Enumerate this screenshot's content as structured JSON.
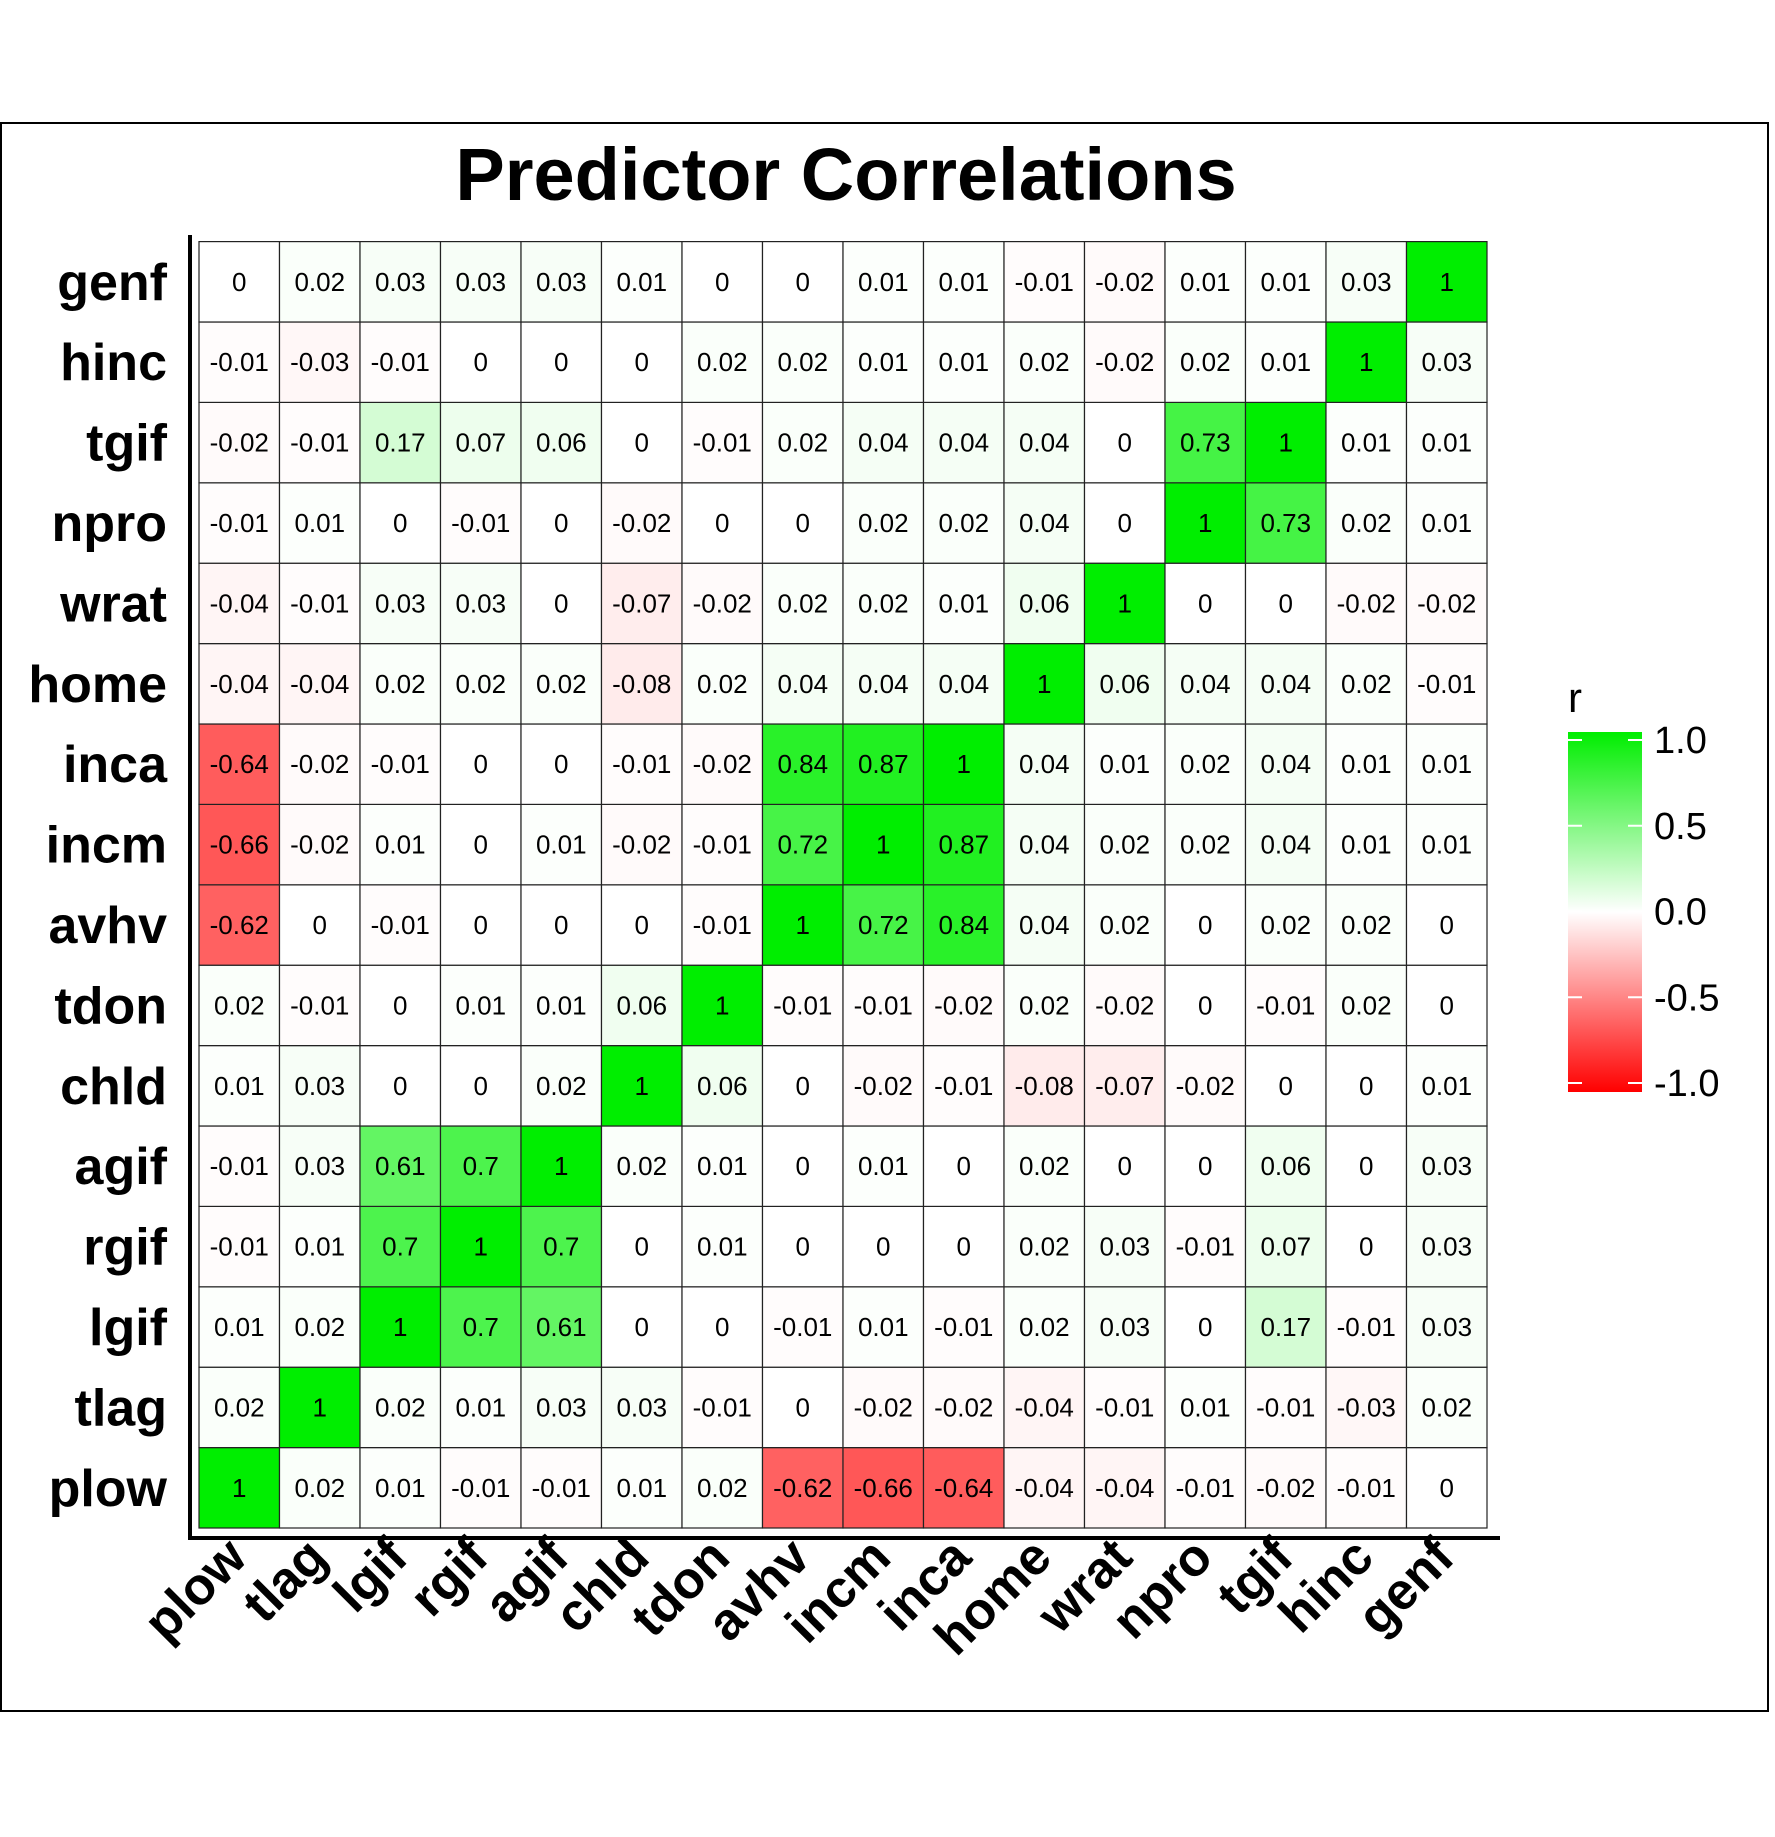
{
  "chart_data": {
    "type": "heatmap",
    "title": "Predictor Correlations",
    "variables": [
      "plow",
      "tlag",
      "lgif",
      "rgif",
      "agif",
      "chld",
      "tdon",
      "avhv",
      "incm",
      "inca",
      "home",
      "wrat",
      "npro",
      "tgif",
      "hinc",
      "genf"
    ],
    "matrix": [
      [
        1,
        0.02,
        0.01,
        -0.01,
        -0.01,
        0.01,
        0.02,
        -0.62,
        -0.66,
        -0.64,
        -0.04,
        -0.04,
        -0.01,
        -0.02,
        -0.01,
        0
      ],
      [
        0.02,
        1,
        0.02,
        0.01,
        0.03,
        0.03,
        -0.01,
        0,
        -0.02,
        -0.02,
        -0.04,
        -0.01,
        0.01,
        -0.01,
        -0.03,
        0.02
      ],
      [
        0.01,
        0.02,
        1,
        0.7,
        0.61,
        0,
        0,
        -0.01,
        0.01,
        -0.01,
        0.02,
        0.03,
        0,
        0.17,
        -0.01,
        0.03
      ],
      [
        -0.01,
        0.01,
        0.7,
        1,
        0.7,
        0,
        0.01,
        0,
        0,
        0,
        0.02,
        0.03,
        -0.01,
        0.07,
        0,
        0.03
      ],
      [
        -0.01,
        0.03,
        0.61,
        0.7,
        1,
        0.02,
        0.01,
        0,
        0.01,
        0,
        0.02,
        0,
        0,
        0.06,
        0,
        0.03
      ],
      [
        0.01,
        0.03,
        0,
        0,
        0.02,
        1,
        0.06,
        0,
        -0.02,
        -0.01,
        -0.08,
        -0.07,
        -0.02,
        0,
        0,
        0.01
      ],
      [
        0.02,
        -0.01,
        0,
        0.01,
        0.01,
        0.06,
        1,
        -0.01,
        -0.01,
        -0.02,
        0.02,
        -0.02,
        0,
        -0.01,
        0.02,
        0
      ],
      [
        -0.62,
        0,
        -0.01,
        0,
        0,
        0,
        -0.01,
        1,
        0.72,
        0.84,
        0.04,
        0.02,
        0,
        0.02,
        0.02,
        0
      ],
      [
        -0.66,
        -0.02,
        0.01,
        0,
        0.01,
        -0.02,
        -0.01,
        0.72,
        1,
        0.87,
        0.04,
        0.02,
        0.02,
        0.04,
        0.01,
        0.01
      ],
      [
        -0.64,
        -0.02,
        -0.01,
        0,
        0,
        -0.01,
        -0.02,
        0.84,
        0.87,
        1,
        0.04,
        0.01,
        0.02,
        0.04,
        0.01,
        0.01
      ],
      [
        -0.04,
        -0.04,
        0.02,
        0.02,
        0.02,
        -0.08,
        0.02,
        0.04,
        0.04,
        0.04,
        1,
        0.06,
        0.04,
        0.04,
        0.02,
        -0.01
      ],
      [
        -0.04,
        -0.01,
        0.03,
        0.03,
        0,
        -0.07,
        -0.02,
        0.02,
        0.02,
        0.01,
        0.06,
        1,
        0,
        0,
        -0.02,
        -0.02
      ],
      [
        -0.01,
        0.01,
        0,
        -0.01,
        0,
        -0.02,
        0,
        0,
        0.02,
        0.02,
        0.04,
        0,
        1,
        0.73,
        0.02,
        0.01
      ],
      [
        -0.02,
        -0.01,
        0.17,
        0.07,
        0.06,
        0,
        -0.01,
        0.02,
        0.04,
        0.04,
        0.04,
        0,
        0.73,
        1,
        0.01,
        0.01
      ],
      [
        -0.01,
        -0.03,
        -0.01,
        0,
        0,
        0,
        0.02,
        0.02,
        0.01,
        0.01,
        0.02,
        -0.02,
        0.02,
        0.01,
        1,
        0.03
      ],
      [
        0,
        0.02,
        0.03,
        0.03,
        0.03,
        0.01,
        0,
        0,
        0.01,
        0.01,
        -0.01,
        -0.02,
        0.01,
        0.01,
        0.03,
        1
      ]
    ],
    "legend": {
      "title": "r",
      "placement": "right",
      "range": [
        -1.0,
        1.0
      ],
      "ticks": [
        "1.0",
        "0.5",
        "0.0",
        "-0.5",
        "-1.0"
      ],
      "tick_values": [
        1.0,
        0.5,
        0.0,
        -0.5,
        -1.0
      ]
    },
    "colors": {
      "low": "#ff0000",
      "mid": "#ffffff",
      "high": "#00ee00"
    }
  }
}
